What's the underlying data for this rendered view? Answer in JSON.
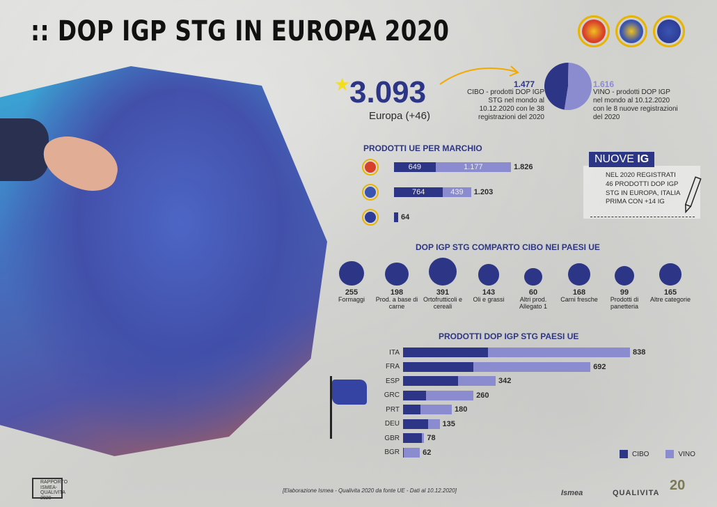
{
  "title": ":: DOP IGP STG IN EUROPA 2020",
  "colors": {
    "cibo": "#2d3686",
    "vino": "#8b8bd0",
    "accent": "#e8b400"
  },
  "summary": {
    "total": "3.093",
    "total_label": "Europa (+46)",
    "cibo_value": "1.477",
    "cibo_text": "CIBO - prodotti DOP IGP STG nel mondo al 10.12.2020 con le 38 registrazioni del 2020",
    "vino_value": "1.616",
    "vino_text": "VINO - prodotti DOP IGP nel mondo al 10.12.2020 con le 8 nuove registrazioni del 2020"
  },
  "nuove_ig": {
    "tab_prefix": "NUOVE",
    "tab_bold": "IG",
    "text": "NEL 2020 REGISTRATI 46 PRODOTTI DOP IGP STG IN EUROPA, ITALIA PRIMA CON +14 IG"
  },
  "legend": {
    "cibo": "CIBO",
    "vino": "VINO"
  },
  "source": "[Elaborazione Ismea - Qualivita 2020 da fonte UE - Dati al 10.12.2020]",
  "footer": {
    "rapporto": "RAPPORTO ISMEA-QUALIVITA 2020",
    "ismea": "Ismea",
    "qualivita": "QUALIVITA",
    "anniversary": "20"
  },
  "chart_data": [
    {
      "type": "pie",
      "categories": [
        "CIBO",
        "VINO"
      ],
      "values": [
        1477,
        1616
      ]
    },
    {
      "type": "bar",
      "title": "PRODOTTI UE PER MARCHIO",
      "categories": [
        "DOP",
        "IGP",
        "STG"
      ],
      "series": [
        {
          "name": "CIBO",
          "values": [
            649,
            764,
            64
          ]
        },
        {
          "name": "VINO",
          "values": [
            1177,
            439,
            0
          ]
        }
      ],
      "totals": [
        "1.826",
        "1.203",
        "64"
      ],
      "segment_labels": [
        [
          "649",
          "1.177"
        ],
        [
          "764",
          "439"
        ],
        [
          "",
          ""
        ]
      ]
    },
    {
      "type": "scatter",
      "title": "DOP IGP STG COMPARTO CIBO NEI PAESI UE",
      "categories": [
        "Formaggi",
        "Prod. a base di carne",
        "Ortofrutticoli e cereali",
        "Oli e grassi",
        "Altri prod. Allegato 1",
        "Carni fresche",
        "Prodotti di panetteria",
        "Altre categorie"
      ],
      "values": [
        255,
        198,
        391,
        143,
        60,
        168,
        99,
        165
      ]
    },
    {
      "type": "bar",
      "title": "PRODOTTI DOP IGP STG PAESI UE",
      "categories": [
        "ITA",
        "FRA",
        "ESP",
        "GRC",
        "PRT",
        "DEU",
        "GBR",
        "BGR"
      ],
      "series": [
        {
          "name": "CIBO",
          "values": [
            313,
            260,
            202,
            85,
            63,
            93,
            69,
            2
          ]
        },
        {
          "name": "VINO",
          "values": [
            525,
            432,
            140,
            175,
            117,
            42,
            9,
            60
          ]
        }
      ],
      "totals": [
        838,
        692,
        342,
        260,
        180,
        135,
        78,
        62
      ]
    }
  ]
}
